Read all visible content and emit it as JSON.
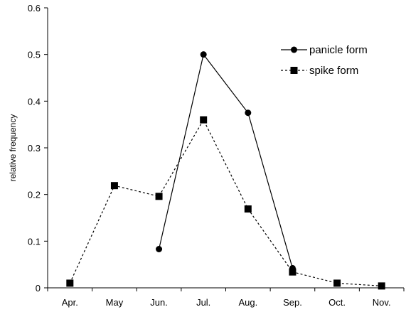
{
  "chart_data": {
    "type": "line",
    "title": "",
    "xlabel": "",
    "ylabel": "relative frequency",
    "ylim": [
      0,
      0.6
    ],
    "yticks": [
      "0",
      "0.1",
      "0.2",
      "0.3",
      "0.4",
      "0.5",
      "0.6"
    ],
    "categories": [
      "Apr.",
      "May",
      "Jun.",
      "Jul.",
      "Aug.",
      "Sep.",
      "Oct.",
      "Nov."
    ],
    "grid": false,
    "legend": "top-right",
    "series": [
      {
        "name": "panicle form",
        "marker": "circle",
        "line": "solid",
        "color": "#000000",
        "values": [
          null,
          null,
          0.083,
          0.5,
          0.375,
          0.042,
          null,
          null
        ]
      },
      {
        "name": "spike form",
        "marker": "square",
        "line": "dashed",
        "color": "#000000",
        "values": [
          0.01,
          0.219,
          0.196,
          0.36,
          0.169,
          0.034,
          0.01,
          0.004
        ]
      }
    ]
  }
}
